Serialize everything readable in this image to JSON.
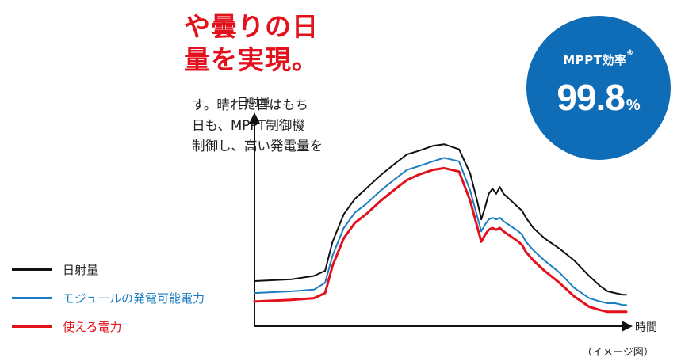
{
  "headline": {
    "line1": "や曇りの日",
    "line2": "量を実現。"
  },
  "body_text": {
    "line1": "す。晴れた日はもち",
    "line2": "日も、MPPT制御機",
    "line3": "制御し、高い発電量を"
  },
  "badge": {
    "label": "MPPT効率",
    "note_mark": "※",
    "value": "99.8",
    "unit": "%"
  },
  "note": "（イメージ図）",
  "colors": {
    "accent_red": "#e3111c",
    "badge_blue": "#0f6cb6",
    "series_black": "#111111",
    "series_blue": "#1a7cc2",
    "series_red": "#e3111c"
  },
  "chart_data": {
    "type": "line",
    "title": "",
    "ylabel": "日射量",
    "xlabel": "時間",
    "xlim": [
      0,
      100
    ],
    "ylim": [
      0,
      100
    ],
    "grid": false,
    "legend_placement": "left",
    "series": [
      {
        "name": "日射量",
        "color": "#111111",
        "x": [
          0,
          10,
          16,
          19,
          21,
          24,
          27,
          30,
          34,
          38,
          41,
          44,
          48,
          51,
          55,
          58,
          60,
          61,
          62,
          63,
          64,
          65,
          66,
          67,
          69,
          71,
          72,
          73,
          75,
          78,
          82,
          86,
          90,
          93,
          95,
          97,
          99,
          100
        ],
        "y": [
          19,
          20,
          22,
          25,
          42,
          58,
          67,
          73,
          81,
          88,
          93,
          95,
          98,
          99,
          96,
          82,
          65,
          55,
          62,
          70,
          73,
          70,
          74,
          70,
          66,
          62,
          60,
          56,
          50,
          44,
          38,
          31,
          22,
          16,
          13,
          12,
          11,
          11
        ]
      },
      {
        "name": "モジュールの発電可能電力",
        "color": "#1a7cc2",
        "x": [
          0,
          10,
          16,
          19,
          21,
          24,
          27,
          30,
          34,
          38,
          41,
          44,
          48,
          51,
          55,
          58,
          60,
          61,
          62,
          63,
          64,
          65,
          66,
          67,
          69,
          71,
          72,
          73,
          75,
          78,
          82,
          86,
          90,
          93,
          95,
          97,
          99,
          100
        ],
        "y": [
          12,
          13,
          14,
          18,
          34,
          50,
          59,
          64,
          72,
          79,
          84,
          86,
          89,
          91,
          89,
          72,
          56,
          48,
          52,
          55,
          56,
          55,
          56,
          54,
          51,
          48,
          46,
          42,
          37,
          31,
          24,
          15,
          9,
          7,
          6,
          6,
          5,
          5
        ]
      },
      {
        "name": "使える電力",
        "color": "#e3111c",
        "x": [
          0,
          10,
          16,
          19,
          21,
          24,
          27,
          30,
          34,
          38,
          41,
          44,
          48,
          51,
          55,
          58,
          60,
          61,
          62,
          63,
          64,
          65,
          66,
          67,
          69,
          71,
          72,
          73,
          75,
          78,
          82,
          86,
          90,
          93,
          95,
          97,
          99,
          100
        ],
        "y": [
          7,
          8,
          9,
          12,
          28,
          44,
          53,
          58,
          66,
          73,
          78,
          81,
          84,
          85,
          83,
          66,
          50,
          42,
          46,
          49,
          50,
          49,
          50,
          48,
          45,
          42,
          40,
          36,
          31,
          25,
          18,
          10,
          4,
          2,
          1,
          1,
          1,
          1
        ]
      }
    ]
  }
}
